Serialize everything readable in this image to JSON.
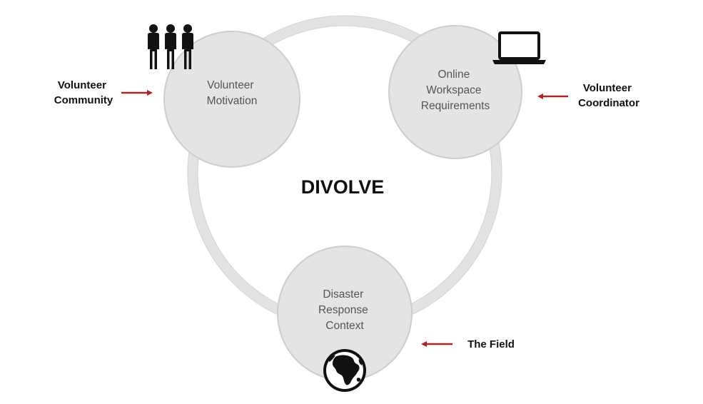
{
  "diagram": {
    "title": "DIVOLVE",
    "nodes": [
      {
        "id": "motivation",
        "lines": [
          "Volunteer",
          "Motivation"
        ],
        "icon": "people-icon"
      },
      {
        "id": "workspace",
        "lines": [
          "Online",
          "Workspace",
          "Requirements"
        ],
        "icon": "laptop-icon"
      },
      {
        "id": "context",
        "lines": [
          "Disaster",
          "Response",
          "Context"
        ],
        "icon": "globe-icon"
      }
    ],
    "inputs": [
      {
        "target": "motivation",
        "lines": [
          "Volunteer",
          "Community"
        ]
      },
      {
        "target": "workspace",
        "lines": [
          "Volunteer",
          "Coordinator"
        ]
      },
      {
        "target": "context",
        "lines": [
          "The Field"
        ]
      }
    ],
    "colors": {
      "ring": "#e6e6e6",
      "ring_stroke": "#d2d2d2",
      "node_fill": "#e4e4e4",
      "node_stroke": "#cfcfcf",
      "arrow": "#b22222",
      "icon": "#111111"
    }
  }
}
